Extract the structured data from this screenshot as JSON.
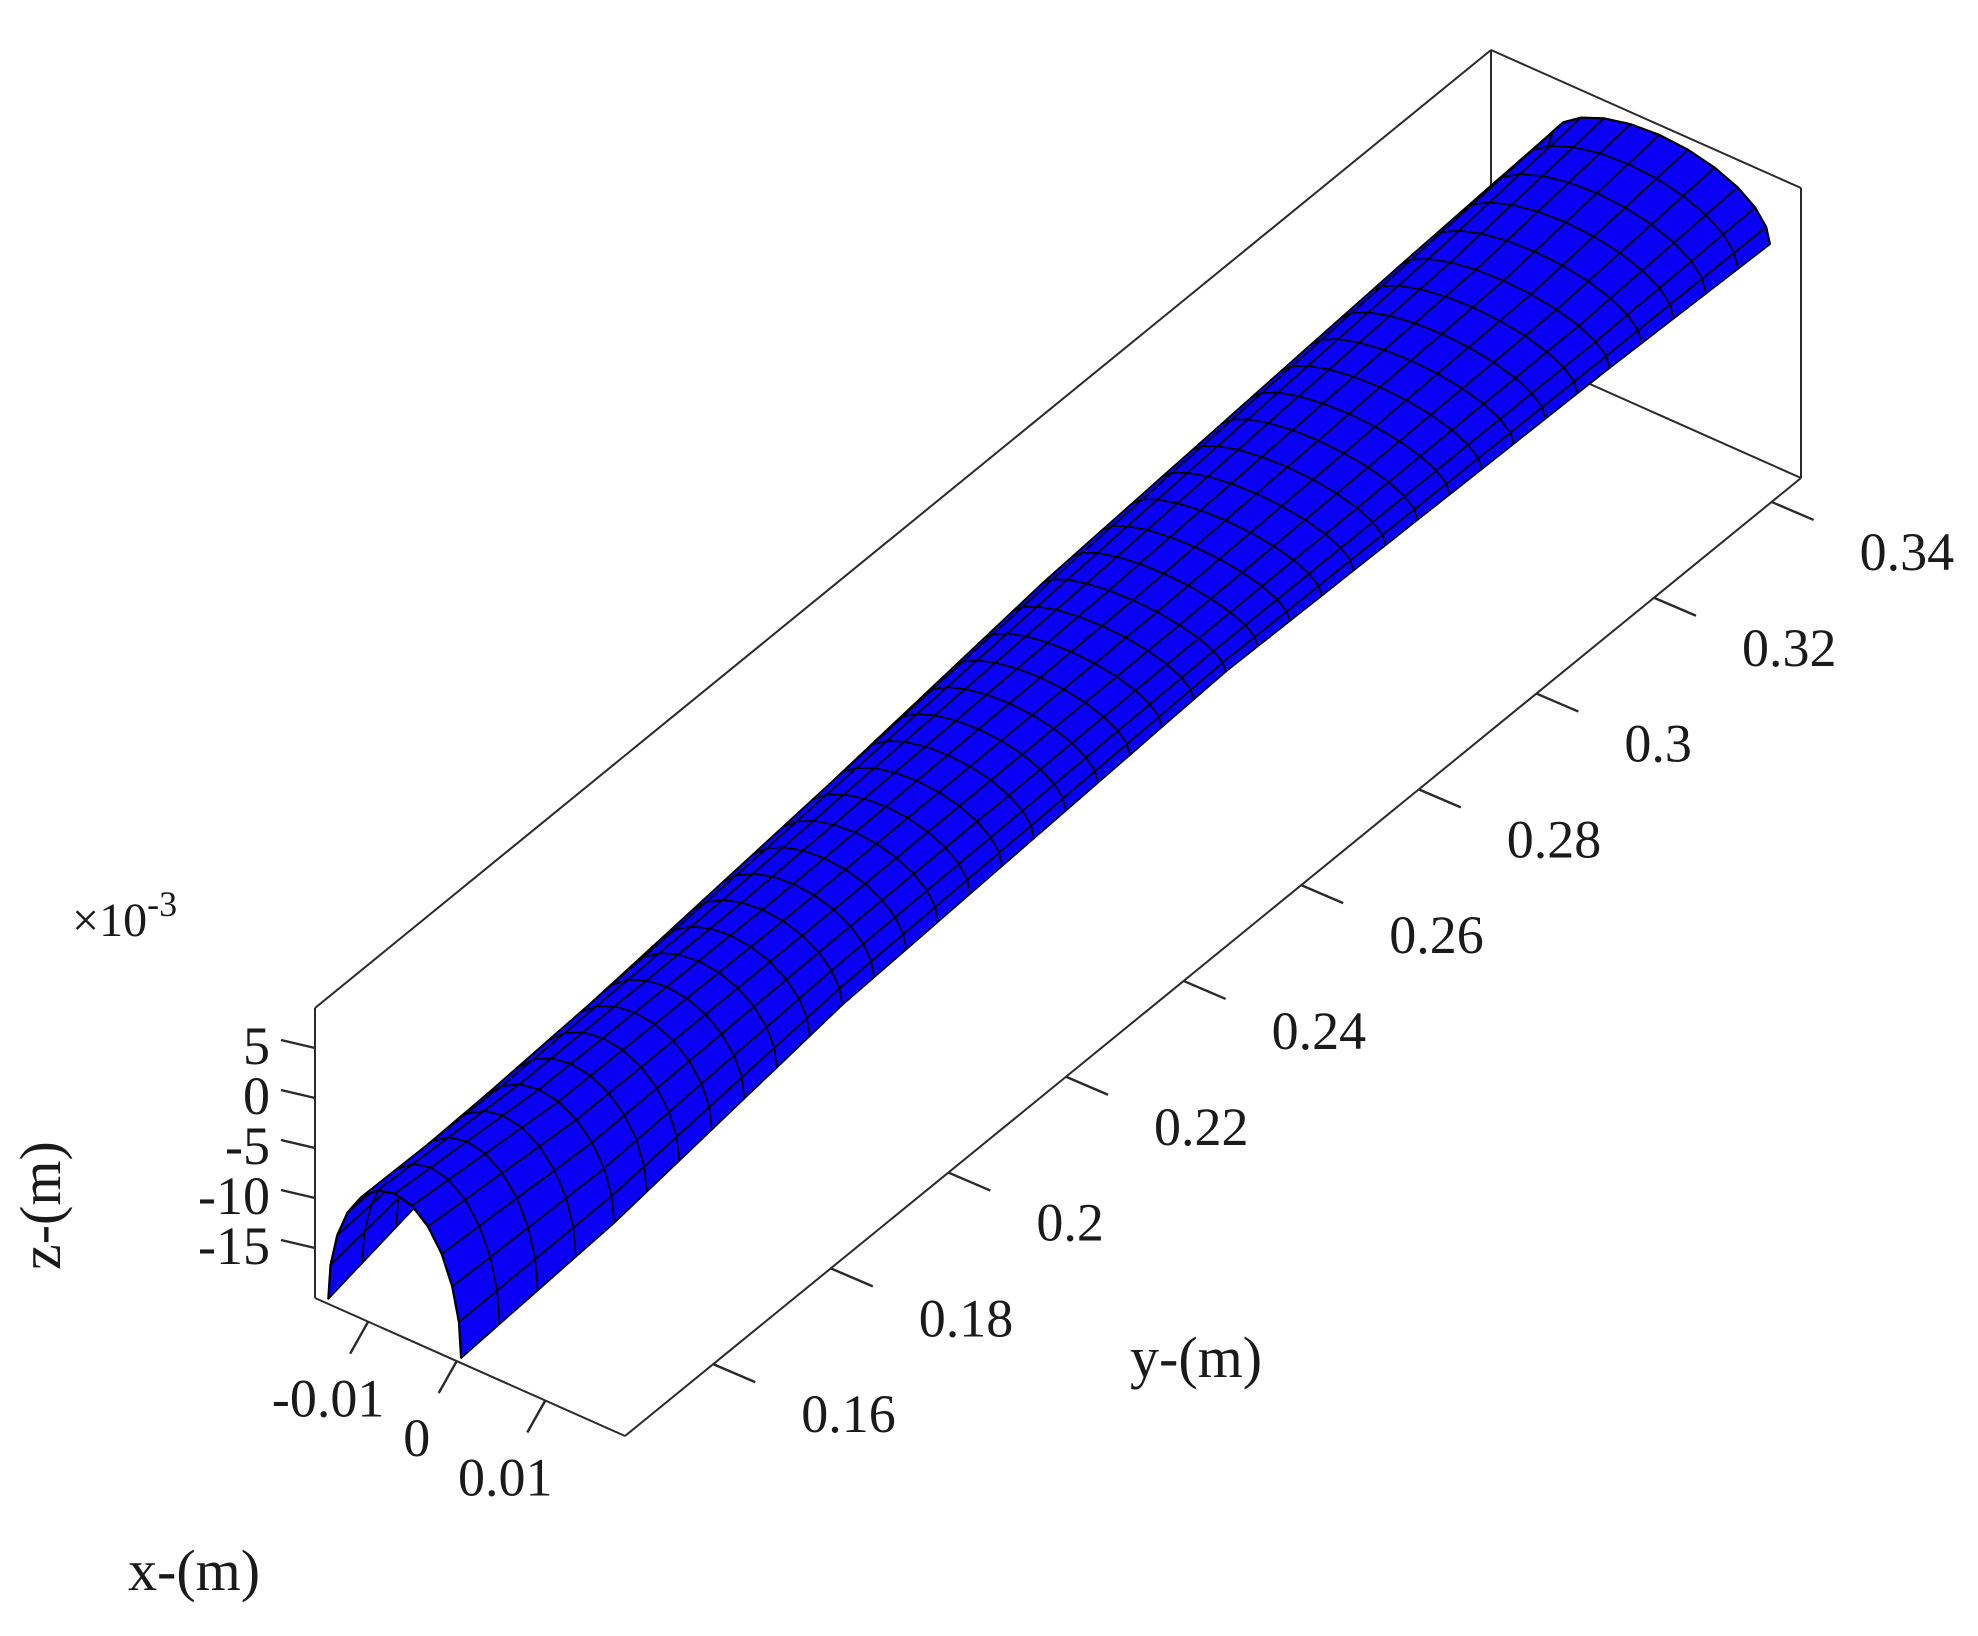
{
  "chart_data": {
    "type": "surface",
    "view": "3d-perspective",
    "surface_color": "#0a00f5",
    "edge_color": "#000000",
    "grid": false,
    "box": true,
    "xlabel": "x-(m)",
    "ylabel": "y-(m)",
    "zlabel": "z-(m)",
    "z_exponent_label": "×10",
    "z_exponent_power": "-3",
    "xlim": [
      -0.016,
      0.019
    ],
    "ylim": [
      0.145,
      0.345
    ],
    "zlim": [
      -0.02,
      0.009
    ],
    "x_ticks": [
      {
        "value": -0.01,
        "label": "-0.01"
      },
      {
        "value": 0,
        "label": "0"
      },
      {
        "value": 0.01,
        "label": "0.01"
      }
    ],
    "y_ticks": [
      {
        "value": 0.16,
        "label": "0.16"
      },
      {
        "value": 0.18,
        "label": "0.18"
      },
      {
        "value": 0.2,
        "label": "0.2"
      },
      {
        "value": 0.22,
        "label": "0.22"
      },
      {
        "value": 0.24,
        "label": "0.24"
      },
      {
        "value": 0.26,
        "label": "0.26"
      },
      {
        "value": 0.28,
        "label": "0.28"
      },
      {
        "value": 0.3,
        "label": "0.3"
      },
      {
        "value": 0.32,
        "label": "0.32"
      },
      {
        "value": 0.34,
        "label": "0.34"
      }
    ],
    "z_ticks": [
      {
        "value": 5,
        "label": "5"
      },
      {
        "value": 0,
        "label": "0"
      },
      {
        "value": -5,
        "label": "-5"
      },
      {
        "value": -10,
        "label": "-10"
      },
      {
        "value": -15,
        "label": "-15"
      }
    ],
    "surface": {
      "description_of_shape": "tapered blade-like surface with elliptical cross-section",
      "y_start": 0.145,
      "y_end": 0.345,
      "y_steps": 40,
      "theta_steps": 12,
      "cross_sections": [
        {
          "y": 0.145,
          "x_center": -0.007,
          "half_width": 0.0075,
          "z_base": -0.0195,
          "z_peak": -0.006
        },
        {
          "y": 0.165,
          "x_center": -0.004,
          "half_width": 0.0085,
          "z_base": -0.014,
          "z_peak": -0.004
        },
        {
          "y": 0.2,
          "x_center": -0.002,
          "half_width": 0.009,
          "z_base": -0.008,
          "z_peak": -0.002
        },
        {
          "y": 0.26,
          "x_center": 0.0,
          "half_width": 0.0105,
          "z_base": -0.002,
          "z_peak": 0.001
        },
        {
          "y": 0.32,
          "x_center": 0.002,
          "half_width": 0.012,
          "z_base": 0.001,
          "z_peak": 0.005
        },
        {
          "y": 0.345,
          "x_center": 0.003,
          "half_width": 0.0125,
          "z_base": 0.002,
          "z_peak": 0.008
        }
      ]
    }
  }
}
